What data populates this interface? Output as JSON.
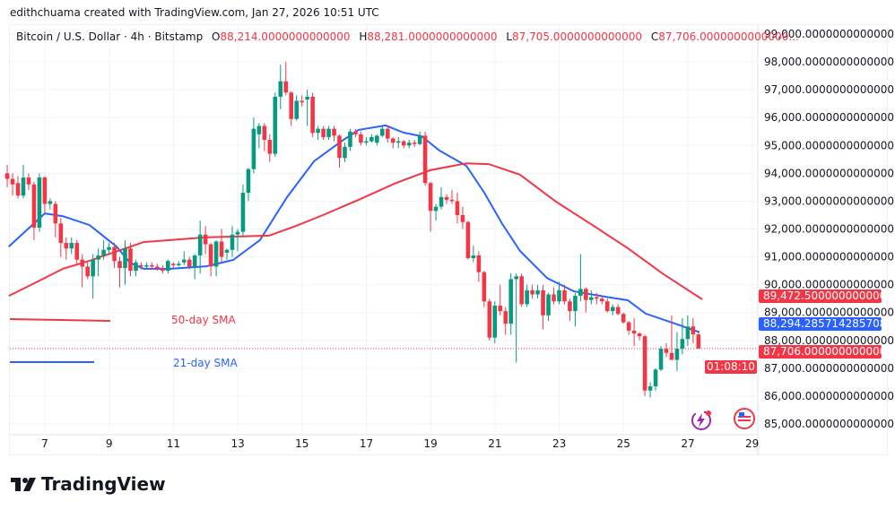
{
  "credit": "edithchuama created with TradingView.com, Jan 27, 2026 10:51 UTC",
  "legend": {
    "symbol": "Bitcoin / U.S. Dollar · 4h · Bitstamp",
    "open_key": "O",
    "open": "88,214.0000000000000",
    "high_key": "H",
    "high": "88,281.0000000000000",
    "low_key": "L",
    "low": "87,705.0000000000000",
    "close_key": "C",
    "close": "87,706.0000000000000..."
  },
  "badges": {
    "sma50": "89,472.5000000000000",
    "sma21": "88,294.2857142857088",
    "last": "87,706.0000000000000",
    "countdown": "01:08:10"
  },
  "ma_labels": {
    "sma50": "50-day SMA",
    "sma21": "21-day SMA"
  },
  "logo": "TradingView",
  "icons": [
    "lightning-icon",
    "us-flag-icon"
  ],
  "colors": {
    "up": "#089981",
    "down": "#f23645",
    "sma21": "#2962ff",
    "sma50": "#f23645",
    "grid": "#f0f3fa"
  },
  "chart_data": {
    "type": "candlestick",
    "interval": "4h",
    "first_candle_day": 5.83,
    "candles_per_day": 6,
    "ylim": [
      85000,
      99000
    ],
    "y_ticks": [
      "99,000.0000000000000",
      "98,000.0000000000000",
      "97,000.0000000000000",
      "96,000.0000000000000",
      "95,000.0000000000000",
      "94,000.0000000000000",
      "93,000.0000000000000",
      "92,000.0000000000000",
      "91,000.0000000000000",
      "90,000.0000000000000",
      "89,000.0000000000000",
      "88,000.0000000000000",
      "87,000.0000000000000",
      "86,000.0000000000000",
      "85,000.0000000000000"
    ],
    "x_ticks": [
      "7",
      "9",
      "11",
      "13",
      "15",
      "17",
      "19",
      "21",
      "23",
      "25",
      "27",
      "29"
    ],
    "grid": true,
    "ohlc": [
      [
        94000,
        94300,
        93500,
        93800
      ],
      [
        93800,
        94000,
        93200,
        93600
      ],
      [
        93650,
        93900,
        93100,
        93200
      ],
      [
        93200,
        94300,
        93100,
        93850
      ],
      [
        93850,
        94000,
        93400,
        93600
      ],
      [
        93600,
        93700,
        91600,
        92050
      ],
      [
        92050,
        94000,
        91900,
        93850
      ],
      [
        93850,
        93900,
        92600,
        92900
      ],
      [
        92900,
        93100,
        92700,
        93000
      ],
      [
        92900,
        93000,
        91700,
        92200
      ],
      [
        92200,
        92400,
        91000,
        91500
      ],
      [
        91500,
        91700,
        90900,
        91300
      ],
      [
        91300,
        91700,
        91100,
        91500
      ],
      [
        91500,
        91600,
        90700,
        90900
      ],
      [
        90900,
        91100,
        89900,
        90650
      ],
      [
        90650,
        90800,
        90200,
        90300
      ],
      [
        90300,
        91100,
        89500,
        90900
      ],
      [
        90900,
        91300,
        90300,
        91050
      ],
      [
        91050,
        91600,
        90900,
        91250
      ],
      [
        91250,
        91500,
        91100,
        91350
      ],
      [
        91350,
        91500,
        90600,
        90850
      ],
      [
        90850,
        91000,
        89900,
        90600
      ],
      [
        90600,
        91600,
        90000,
        91300
      ],
      [
        91300,
        91500,
        90300,
        90500
      ],
      [
        90500,
        90900,
        90300,
        90800
      ],
      [
        90700,
        90800,
        90550,
        90650
      ],
      [
        90650,
        90800,
        90550,
        90700
      ],
      [
        90700,
        90800,
        90550,
        90650
      ],
      [
        90650,
        90750,
        90500,
        90600
      ],
      [
        90600,
        90700,
        90400,
        90500
      ],
      [
        90500,
        90900,
        90400,
        90850
      ],
      [
        90750,
        90800,
        90600,
        90700
      ],
      [
        90700,
        90850,
        90650,
        90750
      ],
      [
        90800,
        91200,
        90700,
        90900
      ],
      [
        90900,
        91000,
        90550,
        90650
      ],
      [
        90650,
        91100,
        90200,
        91050
      ],
      [
        91050,
        92300,
        90400,
        91800
      ],
      [
        91800,
        92100,
        91100,
        91450
      ],
      [
        91450,
        91500,
        90300,
        90650
      ],
      [
        90650,
        91600,
        90300,
        91550
      ],
      [
        91550,
        92000,
        90800,
        91000
      ],
      [
        91150,
        91300,
        90900,
        91250
      ],
      [
        91250,
        92100,
        91000,
        91800
      ],
      [
        91800,
        92000,
        91200,
        91900
      ],
      [
        91900,
        93600,
        91700,
        93300
      ],
      [
        93300,
        94200,
        93000,
        94150
      ],
      [
        94150,
        96000,
        94000,
        95600
      ],
      [
        95400,
        95800,
        94900,
        95700
      ],
      [
        95700,
        95800,
        94800,
        95200
      ],
      [
        95200,
        95400,
        94400,
        94700
      ],
      [
        94700,
        96900,
        94600,
        96750
      ],
      [
        96750,
        97900,
        96300,
        97300
      ],
      [
        97300,
        98000,
        96800,
        96900
      ],
      [
        96900,
        96950,
        95700,
        95950
      ],
      [
        95950,
        96800,
        95900,
        96600
      ],
      [
        96600,
        96800,
        96400,
        96550
      ],
      [
        96650,
        97000,
        95700,
        96750
      ],
      [
        96750,
        96900,
        95300,
        95450
      ],
      [
        95450,
        95700,
        95200,
        95600
      ],
      [
        95600,
        95700,
        95200,
        95300
      ],
      [
        95300,
        95700,
        95200,
        95600
      ],
      [
        95600,
        95700,
        95150,
        95350
      ],
      [
        95350,
        95400,
        94200,
        94550
      ],
      [
        94550,
        95100,
        94400,
        94950
      ],
      [
        94950,
        95600,
        94800,
        95500
      ],
      [
        95500,
        95600,
        95300,
        95400
      ],
      [
        95400,
        95500,
        95000,
        95100
      ],
      [
        95100,
        95300,
        95000,
        95150
      ],
      [
        95150,
        95400,
        95100,
        95300
      ],
      [
        95100,
        95400,
        95000,
        95350
      ],
      [
        95350,
        95700,
        95300,
        95600
      ],
      [
        95600,
        95700,
        95100,
        95250
      ],
      [
        95250,
        95300,
        94900,
        95100
      ],
      [
        95100,
        95300,
        94900,
        95150
      ],
      [
        95150,
        95200,
        94900,
        95000
      ],
      [
        95000,
        95200,
        94900,
        95100
      ],
      [
        95100,
        95200,
        94950,
        95050
      ],
      [
        95050,
        95500,
        95000,
        95350
      ],
      [
        95350,
        95500,
        93550,
        93650
      ],
      [
        93650,
        93700,
        91900,
        92650
      ],
      [
        92650,
        92900,
        92300,
        92800
      ],
      [
        92800,
        93500,
        92700,
        93150
      ],
      [
        93150,
        93250,
        92900,
        93050
      ],
      [
        93050,
        93400,
        92900,
        93000
      ],
      [
        93000,
        93300,
        92200,
        92500
      ],
      [
        92500,
        92800,
        92000,
        92250
      ],
      [
        92250,
        92300,
        90900,
        90950
      ],
      [
        90950,
        91400,
        90800,
        91050
      ],
      [
        91050,
        91200,
        90100,
        90450
      ],
      [
        90450,
        90500,
        89200,
        89400
      ],
      [
        89400,
        89500,
        88000,
        88100
      ],
      [
        88100,
        89400,
        87900,
        89250
      ],
      [
        89250,
        90000,
        88900,
        89050
      ],
      [
        89050,
        89200,
        88200,
        88600
      ],
      [
        88600,
        90400,
        88200,
        90200
      ],
      [
        90200,
        90400,
        87200,
        90300
      ],
      [
        90300,
        90400,
        89200,
        89300
      ],
      [
        89300,
        90000,
        89200,
        89800
      ],
      [
        89800,
        90000,
        89500,
        89650
      ],
      [
        89650,
        90000,
        89500,
        89800
      ],
      [
        89800,
        90000,
        88400,
        88900
      ],
      [
        88900,
        89700,
        88700,
        89650
      ],
      [
        89650,
        89900,
        89300,
        89400
      ],
      [
        89400,
        90100,
        89300,
        89800
      ],
      [
        89800,
        90000,
        89300,
        89400
      ],
      [
        89400,
        89500,
        88700,
        89050
      ],
      [
        89050,
        89700,
        88500,
        89600
      ],
      [
        89600,
        91100,
        89400,
        89850
      ],
      [
        89850,
        89900,
        89000,
        89450
      ],
      [
        89450,
        89800,
        89300,
        89550
      ],
      [
        89550,
        89700,
        89300,
        89500
      ],
      [
        89500,
        89600,
        89300,
        89400
      ],
      [
        89400,
        89500,
        89000,
        89050
      ],
      [
        89050,
        89300,
        88900,
        89200
      ],
      [
        89200,
        89300,
        88900,
        88950
      ],
      [
        88950,
        89000,
        88600,
        88650
      ],
      [
        88650,
        88700,
        88200,
        88350
      ],
      [
        88350,
        88800,
        87800,
        88250
      ],
      [
        88250,
        88300,
        88000,
        88150
      ],
      [
        88150,
        88200,
        86000,
        86200
      ],
      [
        86200,
        86500,
        85950,
        86350
      ],
      [
        86350,
        87000,
        86200,
        86950
      ],
      [
        86950,
        87800,
        86900,
        87700
      ],
      [
        87700,
        87900,
        87400,
        87550
      ],
      [
        87550,
        88900,
        87300,
        87300
      ],
      [
        87300,
        88300,
        86900,
        87700
      ],
      [
        87700,
        88800,
        87500,
        88050
      ],
      [
        88050,
        88900,
        87800,
        88500
      ],
      [
        88500,
        88800,
        87900,
        88214
      ],
      [
        88214,
        88281,
        87705,
        87706
      ]
    ],
    "series": [
      {
        "name": "21-day SMA",
        "color": "#2962ff",
        "points": [
          [
            5.88,
            91370
          ],
          [
            7,
            92560
          ],
          [
            7.56,
            92460
          ],
          [
            8.39,
            92140
          ],
          [
            9.23,
            91370
          ],
          [
            9.65,
            90790
          ],
          [
            10.07,
            90570
          ],
          [
            10.91,
            90570
          ],
          [
            12.02,
            90660
          ],
          [
            12.86,
            90890
          ],
          [
            13.69,
            91600
          ],
          [
            14.53,
            93140
          ],
          [
            15.37,
            94430
          ],
          [
            16.21,
            95140
          ],
          [
            16.76,
            95560
          ],
          [
            17.6,
            95720
          ],
          [
            18.16,
            95460
          ],
          [
            18.72,
            95330
          ],
          [
            19.27,
            94820
          ],
          [
            20.11,
            94270
          ],
          [
            20.67,
            93300
          ],
          [
            21.23,
            92180
          ],
          [
            21.78,
            91210
          ],
          [
            22.62,
            90240
          ],
          [
            23.46,
            89760
          ],
          [
            24.57,
            89540
          ],
          [
            25.13,
            89440
          ],
          [
            25.69,
            88960
          ],
          [
            26.53,
            88630
          ],
          [
            27.36,
            88294
          ]
        ]
      },
      {
        "name": "50-day SMA",
        "color": "#f23645",
        "points": [
          [
            5.88,
            89600
          ],
          [
            6.72,
            90080
          ],
          [
            7.56,
            90570
          ],
          [
            8.39,
            90860
          ],
          [
            10.07,
            91530
          ],
          [
            12.02,
            91700
          ],
          [
            13.97,
            91760
          ],
          [
            14.81,
            92110
          ],
          [
            15.65,
            92500
          ],
          [
            16.76,
            93050
          ],
          [
            17.88,
            93630
          ],
          [
            18.99,
            94110
          ],
          [
            20.11,
            94360
          ],
          [
            20.81,
            94330
          ],
          [
            21.78,
            93950
          ],
          [
            22.9,
            92980
          ],
          [
            24.02,
            92150
          ],
          [
            25.13,
            91310
          ],
          [
            26.25,
            90370
          ],
          [
            27.45,
            89472
          ]
        ]
      }
    ],
    "last_price": 87706
  }
}
